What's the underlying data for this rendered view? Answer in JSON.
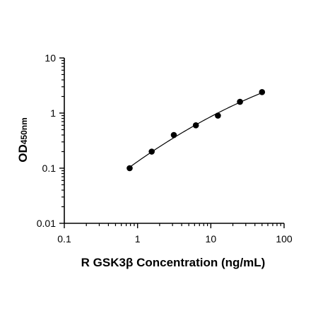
{
  "chart_data": {
    "type": "scatter",
    "x_scale": "log",
    "y_scale": "log",
    "xlabel": "R GSK3β Concentration (ng/mL)",
    "ylabel": {
      "main": "OD",
      "subscript": "450nm"
    },
    "xlim": [
      0.1,
      100
    ],
    "ylim": [
      0.01,
      10
    ],
    "x_ticks": [
      0.1,
      1,
      10,
      100
    ],
    "x_tick_labels": [
      "0.1",
      "1",
      "10",
      "100"
    ],
    "y_ticks": [
      0.01,
      0.1,
      1,
      10
    ],
    "y_tick_labels": [
      "0.01",
      "0.1",
      "1",
      "10"
    ],
    "grid": false,
    "legend": false,
    "series": [
      {
        "x": [
          0.78,
          1.56,
          3.125,
          6.25,
          12.5,
          25,
          50
        ],
        "y": [
          0.1,
          0.2,
          0.4,
          0.6,
          0.9,
          1.6,
          2.4
        ],
        "marker": "circle",
        "fit_line": true
      }
    ],
    "colors": {
      "marker": "#000000",
      "line": "#000000",
      "axis": "#000000"
    }
  }
}
